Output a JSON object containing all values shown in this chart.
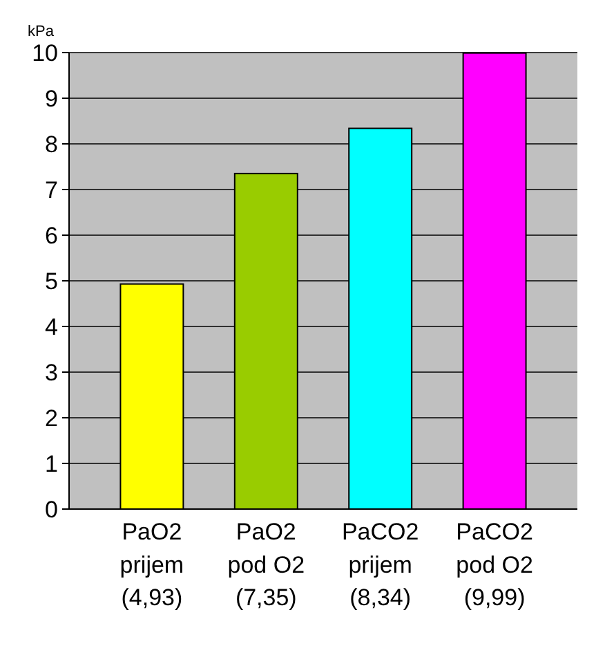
{
  "chart_data": {
    "type": "bar",
    "ylabel": "kPa",
    "categories": [
      "PaO2\nprijem\n(4,93)",
      "PaO2\npod O2\n(7,35)",
      "PaCO2\nprijem\n(8,34)",
      "PaCO2\npod O2\n(9,99)"
    ],
    "values": [
      4.93,
      7.35,
      8.34,
      9.99
    ],
    "colors": [
      "#ffff00",
      "#99cc00",
      "#00ffff",
      "#ff00ff"
    ],
    "ylim": [
      0,
      10
    ],
    "yticks": [
      0,
      1,
      2,
      3,
      4,
      5,
      6,
      7,
      8,
      9,
      10
    ],
    "grid": "y"
  }
}
